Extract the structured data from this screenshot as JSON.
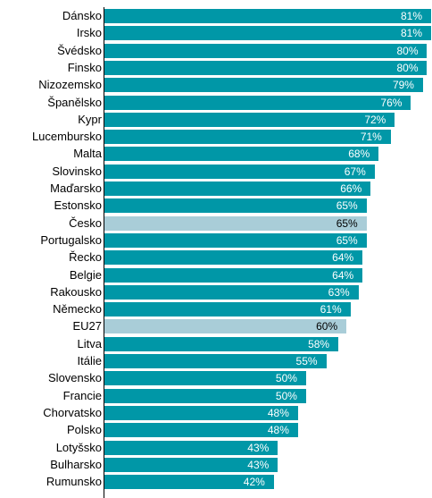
{
  "chart_data": {
    "type": "bar",
    "orientation": "horizontal",
    "title": "",
    "xlabel": "",
    "ylabel": "",
    "xlim": [
      0,
      81
    ],
    "grid": false,
    "legend": "none",
    "colors": {
      "default": "#0097a7",
      "highlight": "#a9cdd8"
    },
    "highlighted": [
      "Česko",
      "EU27"
    ],
    "categories": [
      "Dánsko",
      "Irsko",
      "Švédsko",
      "Finsko",
      "Nizozemsko",
      "Španělsko",
      "Kypr",
      "Lucembursko",
      "Malta",
      "Slovinsko",
      "Maďarsko",
      "Estonsko",
      "Česko",
      "Portugalsko",
      "Řecko",
      "Belgie",
      "Rakousko",
      "Německo",
      "EU27",
      "Litva",
      "Itálie",
      "Slovensko",
      "Francie",
      "Chorvatsko",
      "Polsko",
      "Lotyšsko",
      "Bulharsko",
      "Rumunsko"
    ],
    "values": [
      81,
      81,
      80,
      80,
      79,
      76,
      72,
      71,
      68,
      67,
      66,
      65,
      65,
      65,
      64,
      64,
      63,
      61,
      60,
      58,
      55,
      50,
      50,
      48,
      48,
      43,
      43,
      42
    ],
    "data_labels": [
      "81%",
      "81%",
      "80%",
      "80%",
      "79%",
      "76%",
      "72%",
      "71%",
      "68%",
      "67%",
      "66%",
      "65%",
      "65%",
      "65%",
      "64%",
      "64%",
      "63%",
      "61%",
      "60%",
      "58%",
      "55%",
      "50%",
      "50%",
      "48%",
      "48%",
      "43%",
      "43%",
      "42%"
    ]
  }
}
